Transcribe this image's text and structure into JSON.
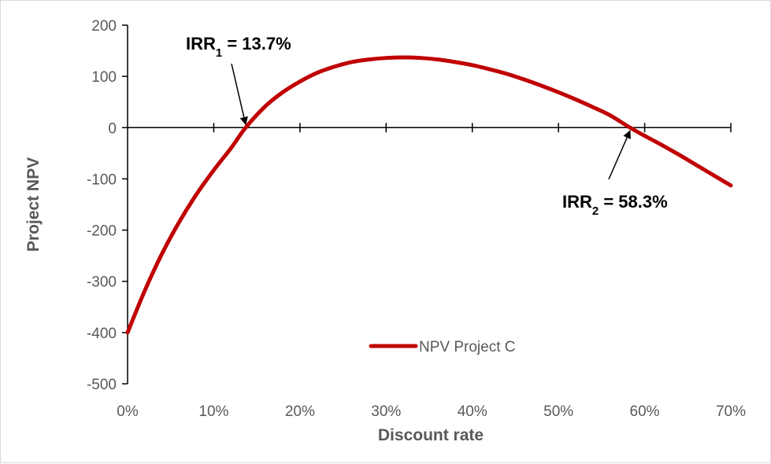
{
  "chart_data": {
    "type": "line",
    "title": "",
    "xlabel": "Discount rate",
    "ylabel": "Project NPV",
    "xlim": [
      0,
      0.7
    ],
    "ylim": [
      -500,
      200
    ],
    "x_ticks": [
      0,
      0.1,
      0.2,
      0.3,
      0.4,
      0.5,
      0.6,
      0.7
    ],
    "x_tick_labels": [
      "0%",
      "10%",
      "20%",
      "30%",
      "40%",
      "50%",
      "60%",
      "70%"
    ],
    "y_ticks": [
      200,
      100,
      0,
      -100,
      -200,
      -300,
      -400,
      -500
    ],
    "y_tick_labels": [
      "200",
      "100",
      "0",
      "-100",
      "-200",
      "-300",
      "-400",
      "-500"
    ],
    "grid": false,
    "legend": {
      "position": "bottom-center",
      "entries": [
        "NPV Project C"
      ]
    },
    "series": [
      {
        "name": "NPV Project C",
        "color": "#c00000",
        "x": [
          0,
          0.02,
          0.04,
          0.06,
          0.08,
          0.1,
          0.12,
          0.137,
          0.16,
          0.18,
          0.2,
          0.22,
          0.24,
          0.26,
          0.28,
          0.3,
          0.32,
          0.34,
          0.36,
          0.38,
          0.4,
          0.42,
          0.44,
          0.46,
          0.48,
          0.5,
          0.52,
          0.54,
          0.56,
          0.583,
          0.6,
          0.62,
          0.64,
          0.66,
          0.68,
          0.7
        ],
        "values": [
          -400,
          -318,
          -246,
          -184,
          -130,
          -83,
          -40,
          0,
          42,
          69,
          90,
          107,
          119,
          128,
          133,
          136,
          137,
          136,
          133,
          128,
          122,
          114,
          105,
          94,
          82,
          69,
          55,
          40,
          24,
          0,
          -16,
          -34,
          -53,
          -73,
          -93,
          -113
        ]
      }
    ],
    "annotations": [
      {
        "label": "IRR",
        "subscript": "1",
        "text": " = 13.7%",
        "x": 0.137,
        "y": 0
      },
      {
        "label": "IRR",
        "subscript": "2",
        "text": " = 58.3%",
        "x": 0.583,
        "y": 0
      }
    ]
  }
}
